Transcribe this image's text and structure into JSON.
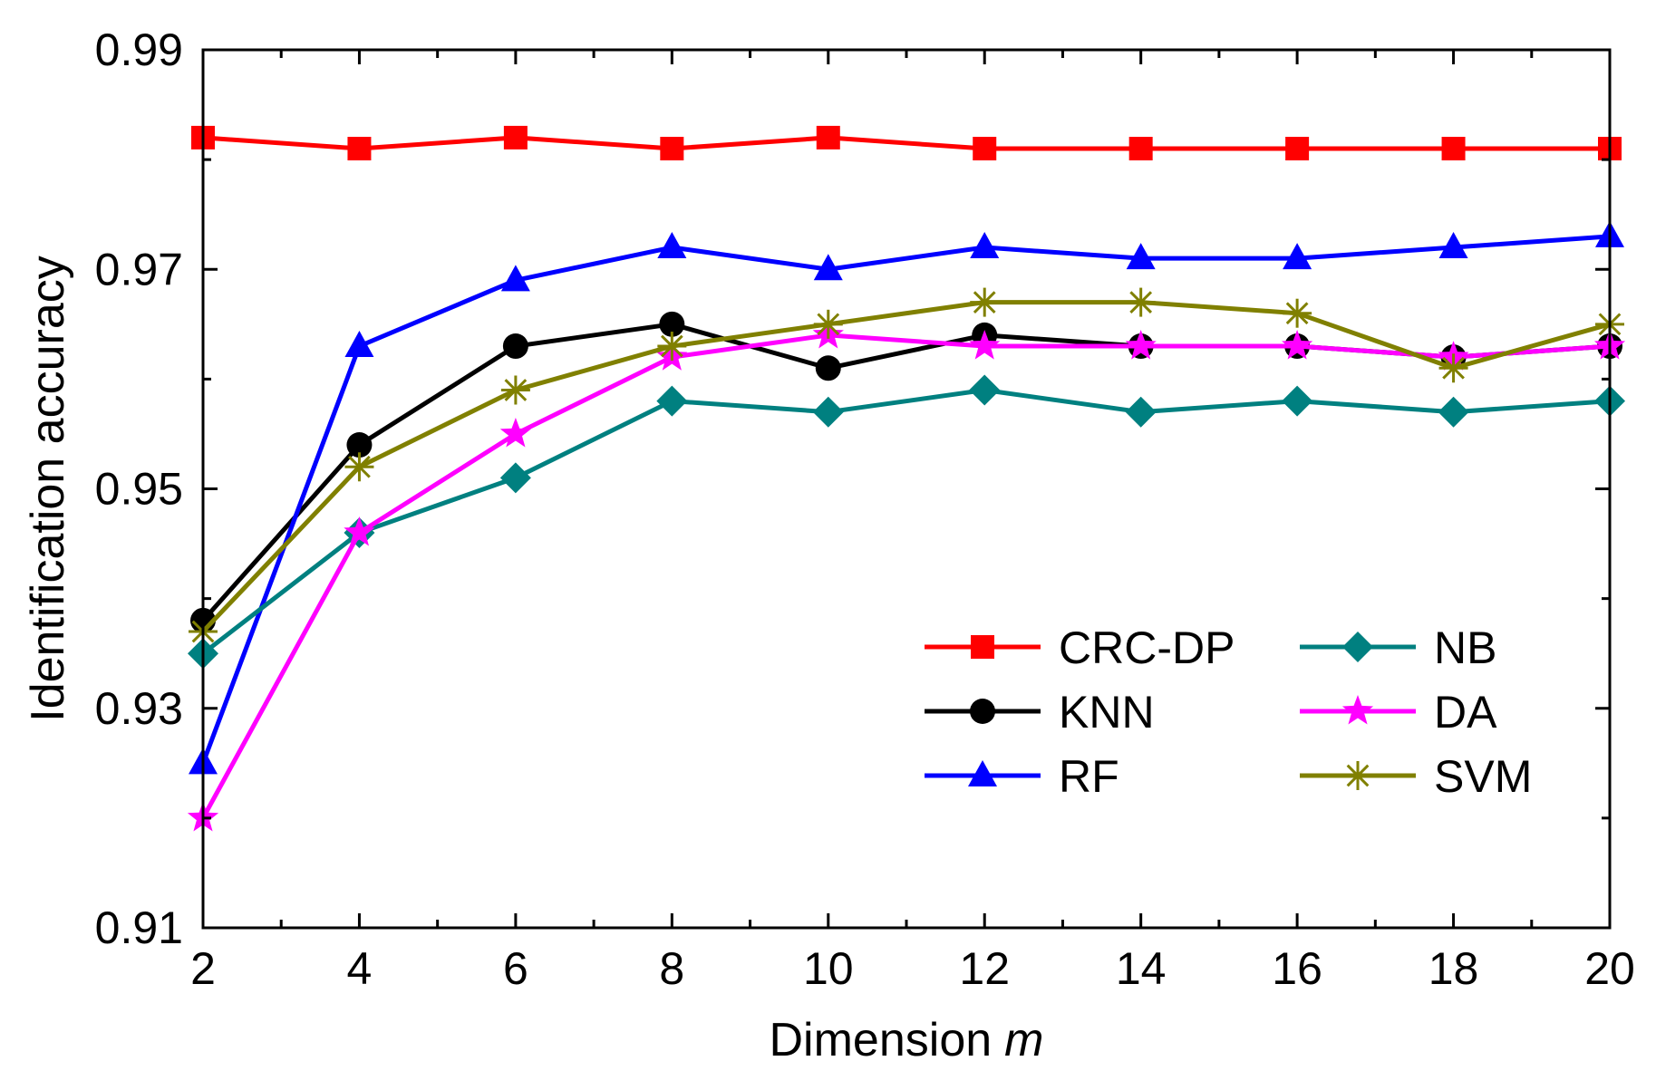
{
  "chart_data": {
    "type": "line",
    "title": "",
    "xlabel": "Dimension",
    "xlabel_var": "m",
    "ylabel": "Identification accuracy",
    "x": [
      2,
      4,
      6,
      8,
      10,
      12,
      14,
      16,
      18,
      20
    ],
    "xlim": [
      2,
      20
    ],
    "ylim": [
      0.91,
      0.99
    ],
    "x_ticks": [
      "2",
      "4",
      "6",
      "8",
      "10",
      "12",
      "14",
      "16",
      "18",
      "20"
    ],
    "y_ticks": [
      "0.91",
      "0.93",
      "0.95",
      "0.97",
      "0.99"
    ],
    "y_tick_values": [
      0.91,
      0.93,
      0.95,
      0.97,
      0.99
    ],
    "grid": false,
    "legend_position": "bottom-right",
    "series": [
      {
        "name": "CRC-DP",
        "color": "#ff0000",
        "marker": "square",
        "values": [
          0.982,
          0.981,
          0.982,
          0.981,
          0.982,
          0.981,
          0.981,
          0.981,
          0.981,
          0.981
        ]
      },
      {
        "name": "KNN",
        "color": "#000000",
        "marker": "circle",
        "values": [
          0.938,
          0.954,
          0.963,
          0.965,
          0.961,
          0.964,
          0.963,
          0.963,
          0.962,
          0.963
        ]
      },
      {
        "name": "RF",
        "color": "#0000ff",
        "marker": "triangle",
        "values": [
          0.925,
          0.963,
          0.969,
          0.972,
          0.97,
          0.972,
          0.971,
          0.971,
          0.972,
          0.973
        ]
      },
      {
        "name": "NB",
        "color": "#008080",
        "marker": "diamond",
        "values": [
          0.935,
          0.946,
          0.951,
          0.958,
          0.957,
          0.959,
          0.957,
          0.958,
          0.957,
          0.958
        ]
      },
      {
        "name": "DA",
        "color": "#ff00ff",
        "marker": "star",
        "values": [
          0.92,
          0.946,
          0.955,
          0.962,
          0.964,
          0.963,
          0.963,
          0.963,
          0.962,
          0.963
        ]
      },
      {
        "name": "SVM",
        "color": "#808000",
        "marker": "asterisk",
        "values": [
          0.937,
          0.952,
          0.959,
          0.963,
          0.965,
          0.967,
          0.967,
          0.966,
          0.961,
          0.965
        ]
      }
    ]
  }
}
